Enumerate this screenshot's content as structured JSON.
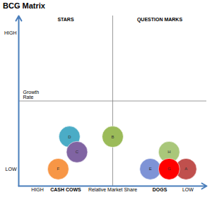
{
  "chart_data": {
    "type": "scatter",
    "title": "BCG Matrix",
    "x_label": "Relative Market Share",
    "y_label": "Growth Rate",
    "labels": [
      "D",
      "C",
      "F",
      "B",
      "H",
      "E",
      "A",
      "G"
    ],
    "x": [
      7.3,
      6.9,
      7.9,
      5.0,
      2.0,
      3.0,
      1.1,
      2.0
    ],
    "values": [
      2.9,
      2.0,
      1.0,
      2.9,
      2.0,
      1.0,
      1.0,
      1.0
    ],
    "colors": [
      "#4bacc6",
      "#8064a2",
      "#f79646",
      "#9bbb59",
      "#a9c77a",
      "#7e93d6",
      "#c0504d",
      "#ff0000"
    ],
    "xlim": [
      10,
      0
    ],
    "xticks": [
      {
        "value": 9,
        "label": "HIGH"
      },
      {
        "value": 1,
        "label": "LOW"
      }
    ],
    "ylim": [
      0,
      10
    ],
    "yticks": [
      {
        "value": 1,
        "label": "LOW"
      },
      {
        "value": 9,
        "label": "HIGH"
      }
    ],
    "annotations": [
      "STARS",
      "QUESTION MARKS",
      "CASH COWS",
      "DOGS"
    ]
  }
}
